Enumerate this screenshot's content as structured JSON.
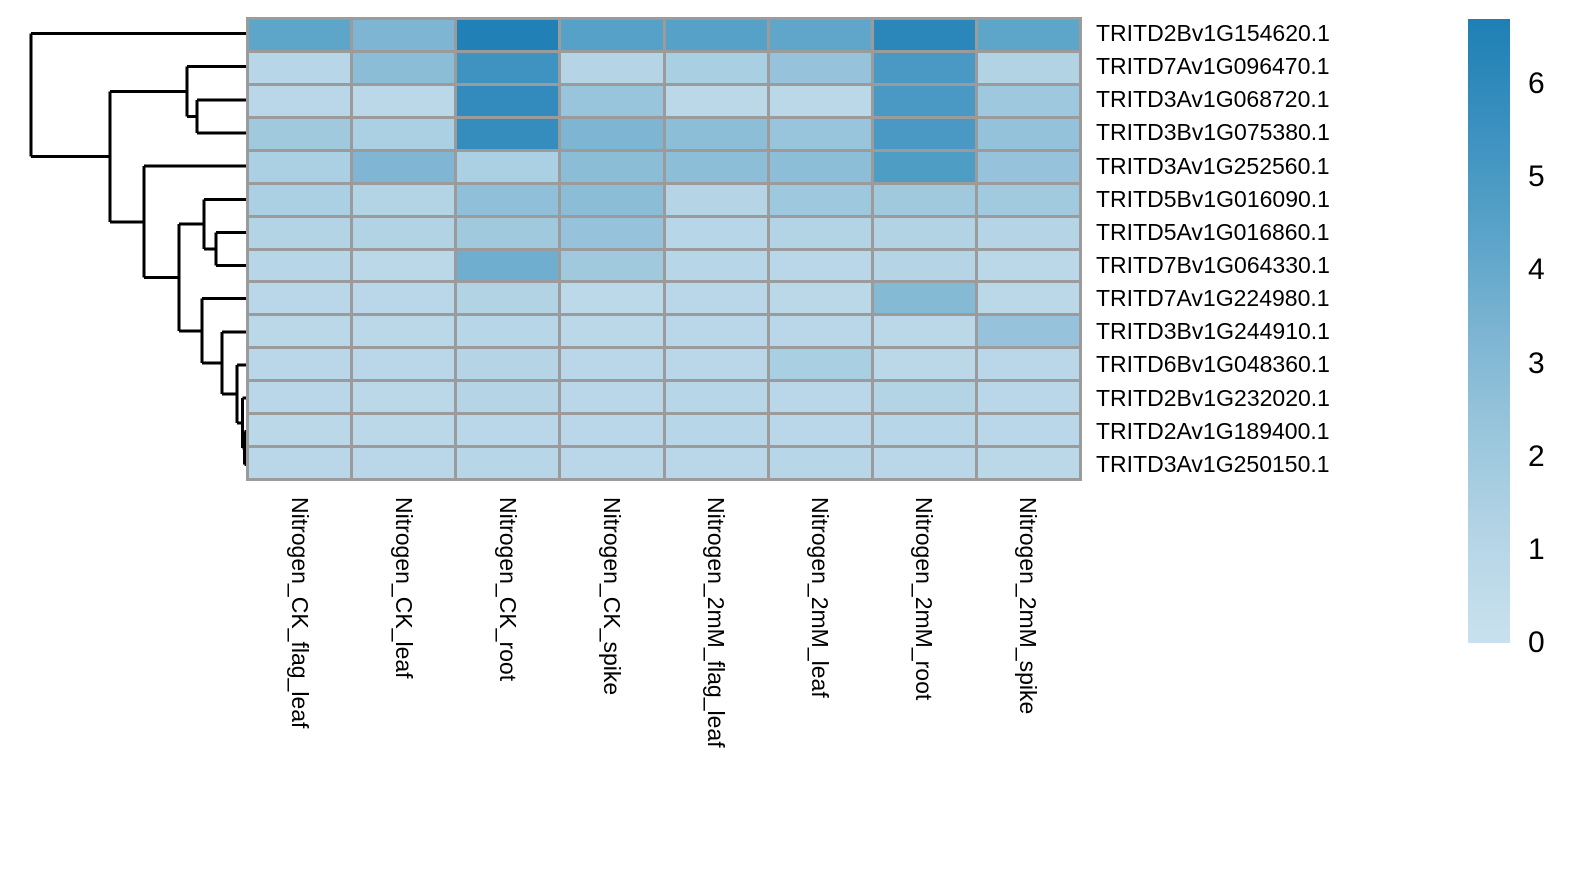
{
  "chart_data": {
    "type": "heatmap",
    "title": "",
    "xlabel": "",
    "ylabel": "",
    "columns": [
      "Nitrogen_CK_flag_leaf",
      "Nitrogen_CK_leaf",
      "Nitrogen_CK_root",
      "Nitrogen_CK_spike",
      "Nitrogen_2mM_flag_leaf",
      "Nitrogen_2mM_leaf",
      "Nitrogen_2mM_root",
      "Nitrogen_2mM_spike"
    ],
    "rows": [
      "TRITD2Bv1G154620.1",
      "TRITD7Av1G096470.1",
      "TRITD3Av1G068720.1",
      "TRITD3Bv1G075380.1",
      "TRITD3Av1G252560.1",
      "TRITD5Bv1G016090.1",
      "TRITD5Av1G016860.1",
      "TRITD7Bv1G064330.1",
      "TRITD7Av1G224980.1",
      "TRITD3Bv1G244910.1",
      "TRITD6Bv1G048360.1",
      "TRITD2Bv1G232020.1",
      "TRITD2Av1G189400.1",
      "TRITD3Av1G250150.1"
    ],
    "values": [
      [
        4.3,
        3.3,
        6.6,
        4.5,
        4.5,
        4.2,
        6.2,
        4.3
      ],
      [
        1.0,
        2.8,
        5.4,
        1.1,
        1.6,
        2.4,
        5.0,
        1.3
      ],
      [
        0.9,
        0.8,
        5.9,
        2.3,
        0.8,
        0.8,
        5.0,
        2.1
      ],
      [
        2.0,
        1.5,
        5.8,
        3.3,
        2.7,
        2.3,
        5.0,
        2.5
      ],
      [
        1.5,
        3.2,
        1.5,
        2.8,
        2.7,
        2.7,
        4.8,
        2.4
      ],
      [
        1.5,
        1.2,
        2.6,
        2.8,
        1.1,
        2.1,
        2.0,
        1.9
      ],
      [
        1.2,
        1.3,
        2.0,
        2.4,
        1.0,
        1.2,
        1.3,
        1.1
      ],
      [
        1.0,
        0.8,
        3.7,
        2.0,
        1.0,
        0.9,
        1.1,
        0.8
      ],
      [
        0.9,
        0.9,
        1.3,
        0.7,
        0.9,
        0.8,
        3.0,
        0.8
      ],
      [
        0.8,
        0.8,
        1.0,
        0.8,
        0.9,
        0.9,
        0.8,
        2.4
      ],
      [
        0.9,
        0.9,
        1.1,
        0.9,
        0.9,
        1.6,
        0.8,
        0.9
      ],
      [
        0.9,
        0.8,
        1.1,
        0.9,
        1.0,
        0.9,
        1.2,
        0.9
      ],
      [
        0.8,
        0.8,
        0.9,
        0.9,
        1.0,
        0.9,
        1.0,
        0.9
      ],
      [
        0.9,
        0.9,
        1.0,
        0.9,
        0.9,
        1.0,
        0.9,
        0.8
      ]
    ],
    "colorbar": {
      "min": 0,
      "max": 6.7,
      "ticks": [
        0,
        1,
        2,
        3,
        4,
        5,
        6
      ],
      "color_low": "#c9e1ee",
      "color_high": "#1f7fb5",
      "gradient_stops": [
        "#c9e1ee",
        "#b5d5e6",
        "#9ac6dc",
        "#7cb4d2",
        "#57a2c8",
        "#3990bf",
        "#1f7fb5"
      ],
      "position": "right"
    },
    "grid_color": "#9b9b9b",
    "dendrogram_color": "#000000",
    "legend_position": "right",
    "row_dendrogram": {
      "note": "heights normalized 0-1 of dendrogram width; L#=leaf row index, M#=merge index",
      "merges": [
        {
          "a": "L2",
          "b": "L3",
          "h": 0.228
        },
        {
          "a": "L1",
          "b": "M0",
          "h": 0.274
        },
        {
          "a": "L6",
          "b": "L7",
          "h": 0.14
        },
        {
          "a": "L5",
          "b": "M2",
          "h": 0.195
        },
        {
          "a": "L12",
          "b": "L13",
          "h": 0.008
        },
        {
          "a": "L11",
          "b": "M4",
          "h": 0.016
        },
        {
          "a": "L10",
          "b": "M5",
          "h": 0.042
        },
        {
          "a": "L9",
          "b": "M6",
          "h": 0.112
        },
        {
          "a": "L8",
          "b": "M7",
          "h": 0.205
        },
        {
          "a": "M3",
          "b": "M8",
          "h": 0.312
        },
        {
          "a": "L4",
          "b": "M9",
          "h": 0.474
        },
        {
          "a": "M1",
          "b": "M10",
          "h": 0.633
        },
        {
          "a": "L0",
          "b": "M11",
          "h": 1.0
        }
      ]
    }
  }
}
